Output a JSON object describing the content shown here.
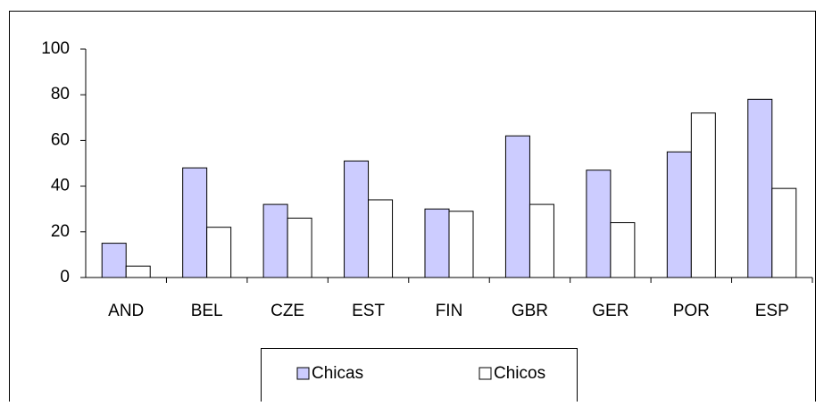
{
  "chart_data": {
    "type": "bar",
    "categories": [
      "AND",
      "BEL",
      "CZE",
      "EST",
      "FIN",
      "GBR",
      "GER",
      "POR",
      "ESP"
    ],
    "series": [
      {
        "name": "Chicas",
        "color": "#ccccff",
        "values": [
          15,
          48,
          32,
          51,
          30,
          62,
          47,
          55,
          78
        ]
      },
      {
        "name": "Chicos",
        "color": "#ffffff",
        "values": [
          5,
          22,
          26,
          34,
          29,
          32,
          24,
          72,
          39
        ]
      }
    ],
    "ylim": [
      0,
      100
    ],
    "yticks": [
      0,
      20,
      40,
      60,
      80,
      100
    ],
    "grid": false,
    "legend": "bottom"
  }
}
